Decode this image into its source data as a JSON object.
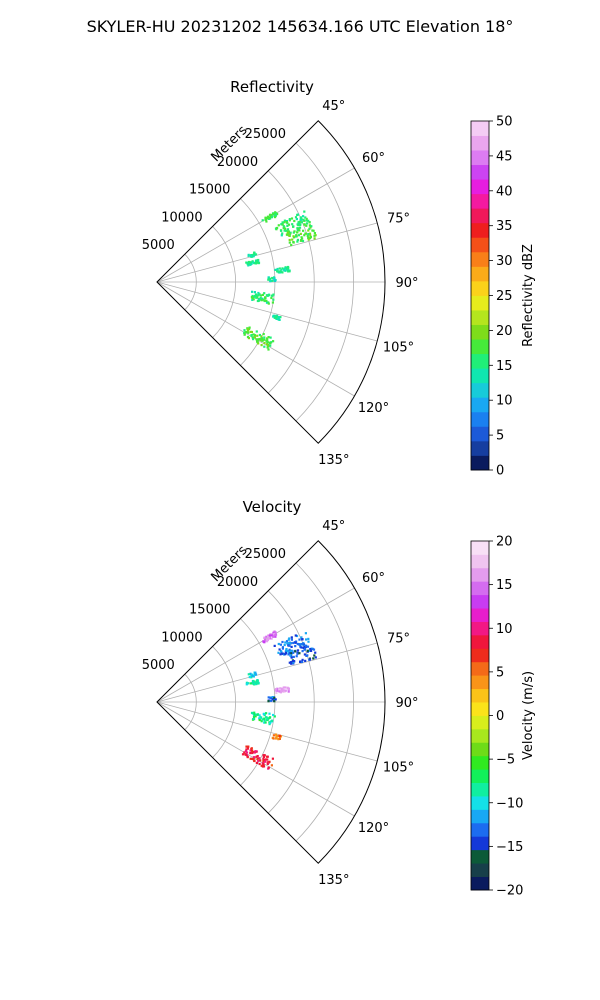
{
  "suptitle": "SKYLER-HU  20231202  145634.166 UTC Elevation 18°",
  "chart_data": [
    {
      "type": "ppi-sector",
      "title": "Reflectivity",
      "range_label": "Meters",
      "range_ticks": [
        5000,
        10000,
        15000,
        20000,
        25000
      ],
      "range_tick_labels": [
        "5000",
        "10000",
        "15000",
        "20000",
        "25000"
      ],
      "range_max": 29000,
      "azimuth_range": [
        45,
        135
      ],
      "azimuth_ticks": [
        45,
        60,
        75,
        90,
        105,
        120,
        135
      ],
      "azimuth_tick_labels": [
        "45°",
        "60°",
        "75°",
        "90°",
        "105°",
        "120°",
        "135°"
      ],
      "grid": true,
      "colorbar": {
        "label": "Reflectivity dBZ",
        "range": [
          0,
          50
        ],
        "ticks": [
          0,
          5,
          10,
          15,
          20,
          25,
          30,
          35,
          40,
          45,
          50
        ],
        "tick_labels": [
          "0",
          "5",
          "10",
          "15",
          "20",
          "25",
          "30",
          "35",
          "40",
          "45",
          "50"
        ],
        "colors": [
          "#0a1b5e",
          "#163ea0",
          "#1c5ad8",
          "#1a80f0",
          "#19a8f2",
          "#17cbd9",
          "#10e6b0",
          "#20ef78",
          "#46ea3a",
          "#7edc1a",
          "#b4e51e",
          "#e6ec1c",
          "#fbd21a",
          "#fbab19",
          "#f97f18",
          "#f45018",
          "#ee1e1e",
          "#f0185a",
          "#f41aa0",
          "#e61ee0",
          "#cc44f2",
          "#dc7cf2",
          "#eaa6ee",
          "#f4ccf4"
        ]
      },
      "clusters": [
        {
          "az": 59.5,
          "r": [
            15500,
            17500
          ],
          "value": 17
        },
        {
          "az": 66.5,
          "r": [
            16500,
            20800
          ],
          "value": 16
        },
        {
          "az": 71.5,
          "r": [
            17500,
            21000
          ],
          "value": 18
        },
        {
          "az": 73.5,
          "r": [
            12000,
            13000
          ],
          "value": 15
        },
        {
          "az": 84,
          "r": [
            15000,
            16800
          ],
          "value": 14
        },
        {
          "az": 78,
          "r": [
            11500,
            13200
          ],
          "value": 15
        },
        {
          "az": 98,
          "r": [
            12000,
            15000
          ],
          "value": 16
        },
        {
          "az": 118.5,
          "r": [
            12500,
            16500
          ],
          "value": 18
        },
        {
          "az": 106,
          "r": [
            15200,
            16200
          ],
          "value": 14
        },
        {
          "az": 88,
          "r": [
            14000,
            15000
          ],
          "value": 13
        }
      ]
    },
    {
      "type": "ppi-sector",
      "title": "Velocity",
      "range_label": "Meters",
      "range_ticks": [
        5000,
        10000,
        15000,
        20000,
        25000
      ],
      "range_tick_labels": [
        "5000",
        "10000",
        "15000",
        "20000",
        "25000"
      ],
      "range_max": 29000,
      "azimuth_range": [
        45,
        135
      ],
      "azimuth_ticks": [
        45,
        60,
        75,
        90,
        105,
        120,
        135
      ],
      "azimuth_tick_labels": [
        "45°",
        "60°",
        "75°",
        "90°",
        "105°",
        "120°",
        "135°"
      ],
      "grid": true,
      "colorbar": {
        "label": "Velocity (m/s)",
        "range": [
          -20,
          20
        ],
        "ticks": [
          -20,
          -15,
          -10,
          -5,
          0,
          5,
          10,
          15,
          20
        ],
        "tick_labels": [
          "−20",
          "−15",
          "−10",
          "−5",
          "0",
          "5",
          "10",
          "15",
          "20"
        ],
        "colors": [
          "#0a1b5e",
          "#173f4a",
          "#0c5a38",
          "#1438d8",
          "#1c6cf0",
          "#18a8f4",
          "#14e0e8",
          "#10eea0",
          "#12f05a",
          "#30ea20",
          "#6edc18",
          "#a8e81e",
          "#d8ee1c",
          "#fbe31a",
          "#fbc318",
          "#f99418",
          "#f46a18",
          "#ee2c1c",
          "#f0163c",
          "#f21884",
          "#e81ecc",
          "#c83cf2",
          "#d46cf0",
          "#e49cee",
          "#f0c4f0",
          "#f8e0f6"
        ]
      },
      "clusters": [
        {
          "az": 59.5,
          "r": [
            15500,
            17500
          ],
          "value": 15
        },
        {
          "az": 66.5,
          "r": [
            16500,
            20800
          ],
          "value": -13
        },
        {
          "az": 71.5,
          "r": [
            17500,
            21000
          ],
          "value": -14
        },
        {
          "az": 73.5,
          "r": [
            12000,
            13000
          ],
          "value": -10
        },
        {
          "az": 84,
          "r": [
            15000,
            16800
          ],
          "value": 16
        },
        {
          "az": 78,
          "r": [
            11500,
            13200
          ],
          "value": -9
        },
        {
          "az": 98,
          "r": [
            12000,
            15000
          ],
          "value": -8
        },
        {
          "az": 118.5,
          "r": [
            12500,
            16500
          ],
          "value": 8
        },
        {
          "az": 106,
          "r": [
            15200,
            16200
          ],
          "value": 5
        },
        {
          "az": 88,
          "r": [
            14000,
            15000
          ],
          "value": -14
        }
      ]
    }
  ]
}
